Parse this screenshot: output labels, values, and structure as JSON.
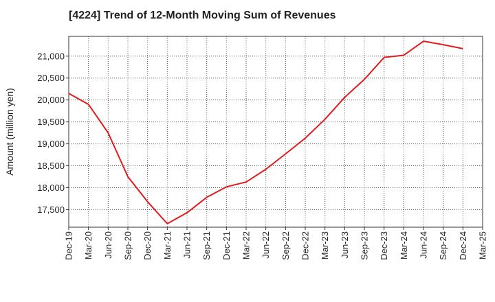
{
  "chart_data": {
    "type": "line",
    "title": "[4224]  Trend of 12-Month Moving Sum of Revenues",
    "xlabel": "",
    "ylabel": "Amount (million yen)",
    "ylim": [
      17100,
      21450
    ],
    "yticks": [
      17500,
      18000,
      18500,
      19000,
      19500,
      20000,
      20500,
      21000
    ],
    "ytick_labels": [
      "17,500",
      "18,000",
      "18,500",
      "19,000",
      "19,500",
      "20,000",
      "20,500",
      "21,000"
    ],
    "x_ticks": [
      "Dec-19",
      "Mar-20",
      "Jun-20",
      "Sep-20",
      "Dec-20",
      "Mar-21",
      "Jun-21",
      "Sep-21",
      "Dec-21",
      "Mar-22",
      "Jun-22",
      "Sep-22",
      "Dec-22",
      "Mar-23",
      "Jun-23",
      "Sep-23",
      "Dec-23",
      "Mar-24",
      "Jun-24",
      "Sep-24",
      "Dec-24",
      "Mar-25"
    ],
    "grid": true,
    "legend": "none",
    "line_color": "#e31a1c",
    "series": [
      {
        "x": [
          "Dec-19",
          "Mar-20",
          "Jun-20",
          "Sep-20",
          "Dec-20",
          "Mar-21",
          "Jun-21",
          "Sep-21",
          "Dec-21",
          "Mar-22",
          "Jun-22",
          "Sep-22",
          "Dec-22",
          "Mar-23",
          "Jun-23",
          "Sep-23",
          "Dec-23",
          "Mar-24",
          "Jun-24",
          "Sep-24",
          "Dec-24"
        ],
        "values": [
          20150,
          19900,
          19250,
          18250,
          17680,
          17180,
          17430,
          17780,
          18020,
          18130,
          18420,
          18770,
          19130,
          19560,
          20060,
          20470,
          20970,
          21020,
          21340,
          21260,
          21170
        ]
      }
    ]
  }
}
